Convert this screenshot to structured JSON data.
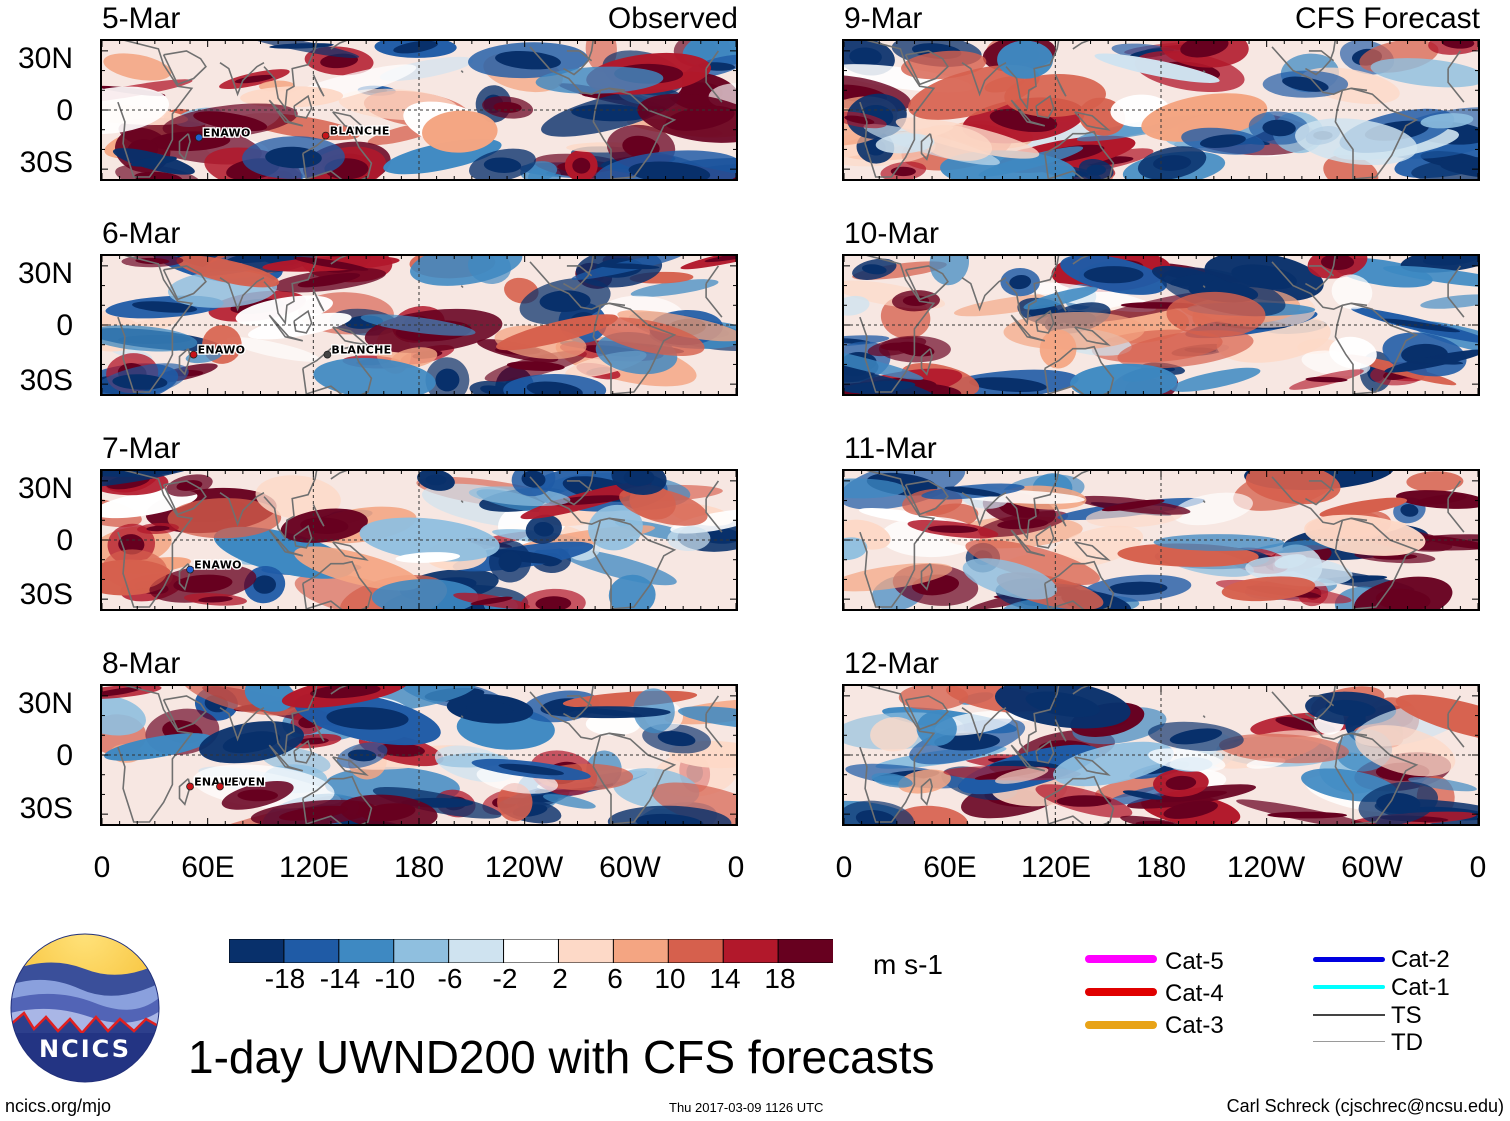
{
  "left_column": {
    "header": "Observed",
    "panels": [
      {
        "date": "5-Mar",
        "storms": [
          {
            "name": "ENAWO",
            "lon": 55,
            "lat": -14,
            "color": "#1f5fd0"
          },
          {
            "name": "BLANCHE",
            "lon": 127,
            "lat": -13,
            "color": "#c8141a"
          }
        ]
      },
      {
        "date": "6-Mar",
        "storms": [
          {
            "name": "ENAWO",
            "lon": 52,
            "lat": -15,
            "color": "#c8141a"
          },
          {
            "name": "BLANCHE",
            "lon": 128,
            "lat": -15,
            "color": "#444444"
          }
        ]
      },
      {
        "date": "7-Mar",
        "storms": [
          {
            "name": "ENAWO",
            "lon": 50,
            "lat": -15,
            "color": "#1f5fd0"
          }
        ]
      },
      {
        "date": "8-Mar",
        "storms": [
          {
            "name": "ENAWO",
            "lon": 50,
            "lat": -16,
            "color": "#c8141a"
          },
          {
            "name": "LEVEN",
            "lon": 67,
            "lat": -16,
            "color": "#c8141a"
          }
        ]
      }
    ]
  },
  "right_column": {
    "header": "CFS Forecast",
    "panels": [
      {
        "date": "9-Mar",
        "storms": []
      },
      {
        "date": "10-Mar",
        "storms": []
      },
      {
        "date": "11-Mar",
        "storms": []
      },
      {
        "date": "12-Mar",
        "storms": []
      }
    ]
  },
  "axes": {
    "lat_labels": [
      "30N",
      "0",
      "30S"
    ],
    "lon_labels": [
      "0",
      "60E",
      "120E",
      "180",
      "120W",
      "60W",
      "0"
    ]
  },
  "colorbar": {
    "units": "m s-1",
    "labels": [
      "-18",
      "-14",
      "-10",
      "-6",
      "-2",
      "2",
      "6",
      "10",
      "14",
      "18"
    ],
    "colors": [
      "#08306b",
      "#1f5ba6",
      "#3e89c2",
      "#8fbfdf",
      "#cfe3f0",
      "#ffffff",
      "#fdd9c7",
      "#f4a582",
      "#d6604d",
      "#b2182b",
      "#67001f"
    ]
  },
  "legend": {
    "left": [
      {
        "label": "Cat-5",
        "color": "#ff00ff"
      },
      {
        "label": "Cat-4",
        "color": "#e00000"
      },
      {
        "label": "Cat-3",
        "color": "#e8a317"
      }
    ],
    "right": [
      {
        "label": "Cat-2",
        "color": "#0000e0"
      },
      {
        "label": "Cat-1",
        "color": "#00ffff"
      },
      {
        "label": "TS",
        "color": "#444444"
      },
      {
        "label": "TD",
        "color": "#9a9a9a"
      }
    ]
  },
  "logo": {
    "text": "NCICS"
  },
  "footer": {
    "title": "1-day UWND200 with CFS forecasts",
    "url": "ncics.org/mjo",
    "timestamp": "Thu 2017-03-09 1126 UTC",
    "credit": "Carl Schreck (cjschrec@ncsu.edu)"
  }
}
